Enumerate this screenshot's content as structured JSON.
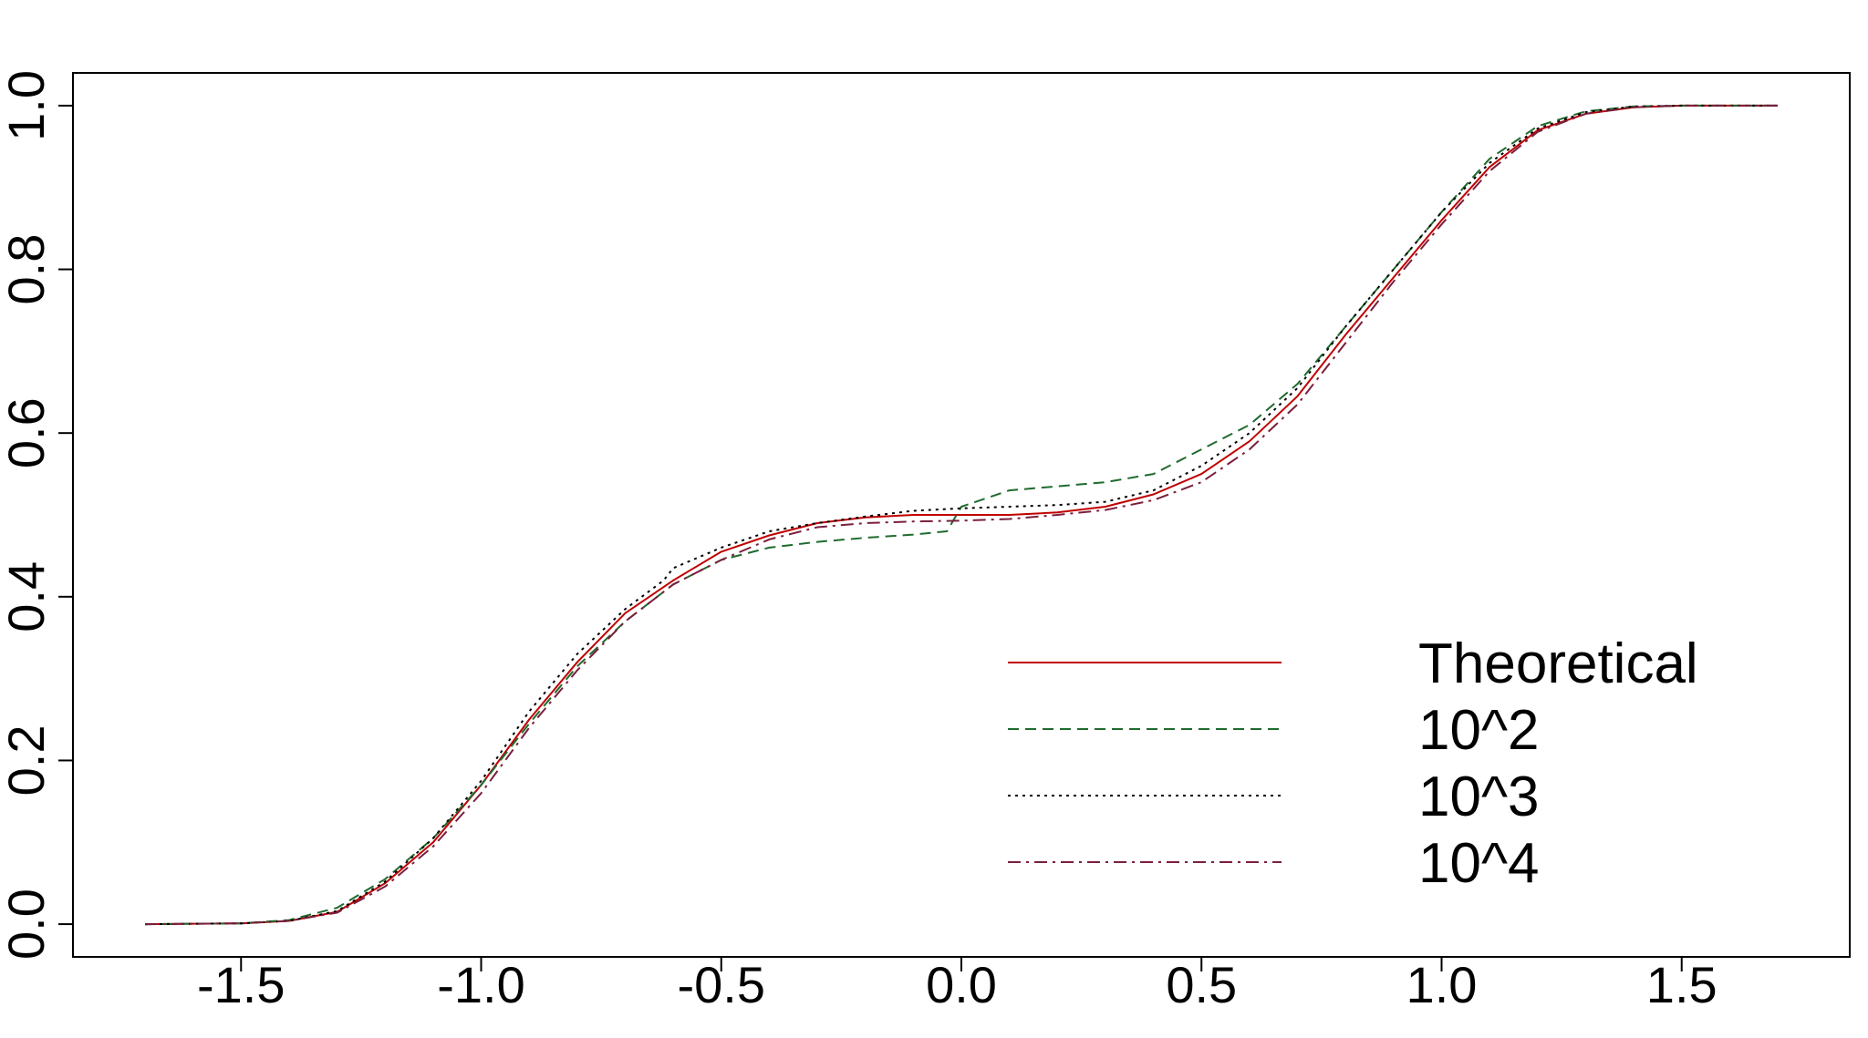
{
  "chart_data": {
    "type": "line",
    "title": "",
    "xlabel": "",
    "ylabel": "",
    "xlim": [
      -1.85,
      1.85
    ],
    "ylim": [
      -0.04,
      1.04
    ],
    "x_ticks": [
      -1.5,
      -1.0,
      -0.5,
      0.0,
      0.5,
      1.0,
      1.5
    ],
    "x_tick_labels": [
      "-1.5",
      "-1.0",
      "-0.5",
      "0.0",
      "0.5",
      "1.0",
      "1.5"
    ],
    "y_ticks": [
      0.0,
      0.2,
      0.4,
      0.6,
      0.8,
      1.0
    ],
    "y_tick_labels": [
      "0.0",
      "0.2",
      "0.4",
      "0.6",
      "0.8",
      "1.0"
    ],
    "grid": false,
    "legend": "bottom-right",
    "series": [
      {
        "name": "Theoretical",
        "color": "#c00000",
        "dash": "solid",
        "x": [
          -1.7,
          -1.5,
          -1.4,
          -1.3,
          -1.2,
          -1.1,
          -1.0,
          -0.9,
          -0.8,
          -0.7,
          -0.6,
          -0.5,
          -0.4,
          -0.3,
          -0.2,
          -0.1,
          0.0,
          0.1,
          0.2,
          0.3,
          0.4,
          0.5,
          0.6,
          0.7,
          0.8,
          0.9,
          1.0,
          1.1,
          1.2,
          1.3,
          1.4,
          1.5,
          1.7
        ],
        "y": [
          0.0,
          0.001,
          0.004,
          0.015,
          0.05,
          0.1,
          0.17,
          0.25,
          0.32,
          0.38,
          0.42,
          0.455,
          0.475,
          0.49,
          0.497,
          0.5,
          0.5,
          0.5,
          0.503,
          0.51,
          0.525,
          0.55,
          0.59,
          0.645,
          0.72,
          0.79,
          0.86,
          0.925,
          0.97,
          0.99,
          0.998,
          1.0,
          1.0
        ]
      },
      {
        "name": "10^2",
        "color": "#1f6b2e",
        "dash": "dashed",
        "x": [
          -1.7,
          -1.5,
          -1.4,
          -1.3,
          -1.2,
          -1.1,
          -1.0,
          -0.9,
          -0.8,
          -0.7,
          -0.6,
          -0.5,
          -0.4,
          -0.3,
          -0.2,
          -0.1,
          -0.03,
          0.0,
          0.1,
          0.2,
          0.3,
          0.4,
          0.5,
          0.6,
          0.7,
          0.8,
          0.9,
          1.0,
          1.1,
          1.2,
          1.3,
          1.4,
          1.5,
          1.7
        ],
        "y": [
          0.0,
          0.001,
          0.005,
          0.02,
          0.055,
          0.105,
          0.17,
          0.245,
          0.315,
          0.37,
          0.415,
          0.445,
          0.46,
          0.467,
          0.472,
          0.476,
          0.48,
          0.51,
          0.53,
          0.535,
          0.54,
          0.55,
          0.58,
          0.61,
          0.66,
          0.73,
          0.8,
          0.87,
          0.935,
          0.975,
          0.993,
          0.999,
          1.0,
          1.0
        ]
      },
      {
        "name": "10^3",
        "color": "#000000",
        "dash": "dotted",
        "x": [
          -1.7,
          -1.5,
          -1.4,
          -1.3,
          -1.2,
          -1.1,
          -1.0,
          -0.9,
          -0.8,
          -0.7,
          -0.62,
          -0.6,
          -0.5,
          -0.4,
          -0.3,
          -0.2,
          -0.1,
          0.0,
          0.1,
          0.2,
          0.3,
          0.4,
          0.5,
          0.6,
          0.7,
          0.8,
          0.9,
          1.0,
          1.1,
          1.2,
          1.3,
          1.4,
          1.5,
          1.7
        ],
        "y": [
          0.0,
          0.001,
          0.004,
          0.016,
          0.052,
          0.105,
          0.175,
          0.26,
          0.33,
          0.385,
          0.42,
          0.435,
          0.46,
          0.48,
          0.49,
          0.498,
          0.505,
          0.508,
          0.51,
          0.512,
          0.516,
          0.53,
          0.56,
          0.6,
          0.655,
          0.73,
          0.8,
          0.87,
          0.93,
          0.972,
          0.992,
          0.999,
          1.0,
          1.0
        ]
      },
      {
        "name": "10^4",
        "color": "#7a1f3d",
        "dash": "dashdot",
        "x": [
          -1.7,
          -1.5,
          -1.4,
          -1.3,
          -1.2,
          -1.1,
          -1.0,
          -0.9,
          -0.8,
          -0.7,
          -0.6,
          -0.5,
          -0.4,
          -0.3,
          -0.2,
          -0.1,
          0.0,
          0.1,
          0.2,
          0.3,
          0.4,
          0.5,
          0.6,
          0.7,
          0.8,
          0.9,
          1.0,
          1.1,
          1.2,
          1.3,
          1.4,
          1.5,
          1.7
        ],
        "y": [
          0.0,
          0.001,
          0.004,
          0.014,
          0.046,
          0.095,
          0.16,
          0.24,
          0.31,
          0.37,
          0.415,
          0.445,
          0.47,
          0.485,
          0.49,
          0.492,
          0.493,
          0.495,
          0.5,
          0.506,
          0.518,
          0.54,
          0.58,
          0.635,
          0.71,
          0.785,
          0.855,
          0.92,
          0.968,
          0.99,
          0.998,
          1.0,
          1.0
        ]
      }
    ]
  }
}
